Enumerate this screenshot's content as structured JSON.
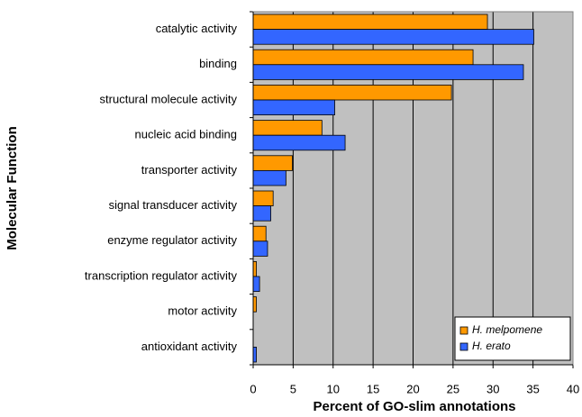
{
  "chart_data": {
    "type": "bar",
    "orientation": "horizontal",
    "x_label": "Percent of GO-slim annotations",
    "y_label": "Molecular Function",
    "categories": [
      "catalytic activity",
      "binding",
      "structural molecule activity",
      "nucleic acid binding",
      "transporter activity",
      "signal transducer activity",
      "enzyme regulator activity",
      "transcription regulator activity",
      "motor activity",
      "antioxidant activity"
    ],
    "series": [
      {
        "name": "H. melpomene",
        "color": "#ff9900",
        "values": [
          29.3,
          27.5,
          24.8,
          8.6,
          4.9,
          2.5,
          1.6,
          0.4,
          0.4,
          0
        ]
      },
      {
        "name": "H. erato",
        "color": "#3366ff",
        "values": [
          35.1,
          33.8,
          10.2,
          11.5,
          4.1,
          2.2,
          1.8,
          0.8,
          0,
          0.4
        ]
      }
    ],
    "xlim": [
      0,
      40
    ],
    "xticks": [
      0,
      5,
      10,
      15,
      20,
      25,
      30,
      35,
      40
    ],
    "grid": true,
    "legend": "lower right",
    "background": "#c0c0c0"
  }
}
